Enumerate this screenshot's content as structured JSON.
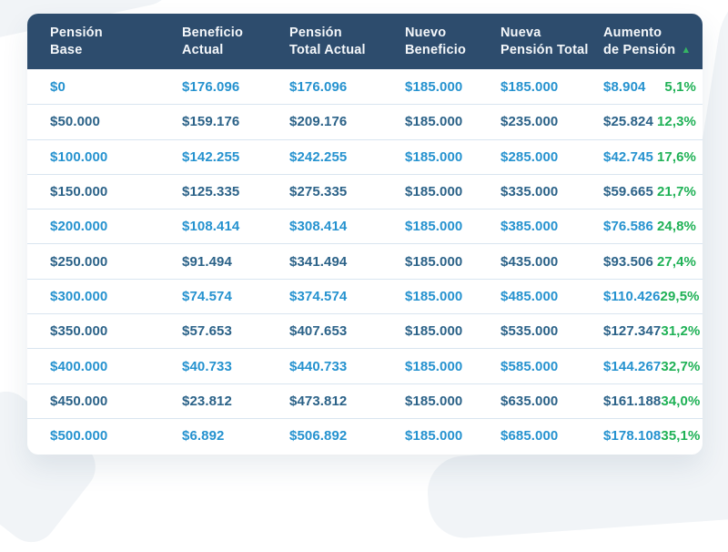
{
  "chart_data": {
    "type": "table",
    "columns": [
      "Pensión Base",
      "Beneficio Actual",
      "Pensión Total Actual",
      "Nuevo Beneficio",
      "Nueva Pensión Total",
      "Aumento de Pensión",
      "Aumento de Pensión %"
    ],
    "rows": [
      [
        "$0",
        "$176.096",
        "$176.096",
        "$185.000",
        "$185.000",
        "$8.904",
        "5,1%"
      ],
      [
        "$50.000",
        "$159.176",
        "$209.176",
        "$185.000",
        "$235.000",
        "$25.824",
        "12,3%"
      ],
      [
        "$100.000",
        "$142.255",
        "$242.255",
        "$185.000",
        "$285.000",
        "$42.745",
        "17,6%"
      ],
      [
        "$150.000",
        "$125.335",
        "$275.335",
        "$185.000",
        "$335.000",
        "$59.665",
        "21,7%"
      ],
      [
        "$200.000",
        "$108.414",
        "$308.414",
        "$185.000",
        "$385.000",
        "$76.586",
        "24,8%"
      ],
      [
        "$250.000",
        "$91.494",
        "$341.494",
        "$185.000",
        "$435.000",
        "$93.506",
        "27,4%"
      ],
      [
        "$300.000",
        "$74.574",
        "$374.574",
        "$185.000",
        "$485.000",
        "$110.426",
        "29,5%"
      ],
      [
        "$350.000",
        "$57.653",
        "$407.653",
        "$185.000",
        "$535.000",
        "$127.347",
        "31,2%"
      ],
      [
        "$400.000",
        "$40.733",
        "$440.733",
        "$185.000",
        "$585.000",
        "$144.267",
        "32,7%"
      ],
      [
        "$450.000",
        "$23.812",
        "$473.812",
        "$185.000",
        "$635.000",
        "$161.188",
        "34,0%"
      ],
      [
        "$500.000",
        "$6.892",
        "$506.892",
        "$185.000",
        "$685.000",
        "$178.108",
        "35,1%"
      ]
    ],
    "sort": {
      "column": "Aumento de Pensión",
      "direction": "ascending"
    }
  },
  "table": {
    "columns": [
      {
        "line1": "Pensión",
        "line2": "Base"
      },
      {
        "line1": "Beneficio",
        "line2": "Actual"
      },
      {
        "line1": "Pensión",
        "line2": "Total Actual"
      },
      {
        "line1": "Nuevo",
        "line2": "Beneficio"
      },
      {
        "line1": "Nueva",
        "line2": "Pensión Total"
      },
      {
        "line1": "Aumento",
        "line2": "de Pensión",
        "sort_icon": "▲"
      }
    ],
    "rows": [
      {
        "pension_base": "$0",
        "beneficio_actual": "$176.096",
        "pension_total_actual": "$176.096",
        "nuevo_beneficio": "$185.000",
        "nueva_pension_total": "$185.000",
        "aumento": "$8.904",
        "aumento_pct": "5,1%",
        "tone": "bright"
      },
      {
        "pension_base": "$50.000",
        "beneficio_actual": "$159.176",
        "pension_total_actual": "$209.176",
        "nuevo_beneficio": "$185.000",
        "nueva_pension_total": "$235.000",
        "aumento": "$25.824",
        "aumento_pct": "12,3%",
        "tone": "dark"
      },
      {
        "pension_base": "$100.000",
        "beneficio_actual": "$142.255",
        "pension_total_actual": "$242.255",
        "nuevo_beneficio": "$185.000",
        "nueva_pension_total": "$285.000",
        "aumento": "$42.745",
        "aumento_pct": "17,6%",
        "tone": "bright"
      },
      {
        "pension_base": "$150.000",
        "beneficio_actual": "$125.335",
        "pension_total_actual": "$275.335",
        "nuevo_beneficio": "$185.000",
        "nueva_pension_total": "$335.000",
        "aumento": "$59.665",
        "aumento_pct": "21,7%",
        "tone": "dark"
      },
      {
        "pension_base": "$200.000",
        "beneficio_actual": "$108.414",
        "pension_total_actual": "$308.414",
        "nuevo_beneficio": "$185.000",
        "nueva_pension_total": "$385.000",
        "aumento": "$76.586",
        "aumento_pct": "24,8%",
        "tone": "bright"
      },
      {
        "pension_base": "$250.000",
        "beneficio_actual": "$91.494",
        "pension_total_actual": "$341.494",
        "nuevo_beneficio": "$185.000",
        "nueva_pension_total": "$435.000",
        "aumento": "$93.506",
        "aumento_pct": "27,4%",
        "tone": "dark"
      },
      {
        "pension_base": "$300.000",
        "beneficio_actual": "$74.574",
        "pension_total_actual": "$374.574",
        "nuevo_beneficio": "$185.000",
        "nueva_pension_total": "$485.000",
        "aumento": "$110.426",
        "aumento_pct": "29,5%",
        "tone": "bright"
      },
      {
        "pension_base": "$350.000",
        "beneficio_actual": "$57.653",
        "pension_total_actual": "$407.653",
        "nuevo_beneficio": "$185.000",
        "nueva_pension_total": "$535.000",
        "aumento": "$127.347",
        "aumento_pct": "31,2%",
        "tone": "dark"
      },
      {
        "pension_base": "$400.000",
        "beneficio_actual": "$40.733",
        "pension_total_actual": "$440.733",
        "nuevo_beneficio": "$185.000",
        "nueva_pension_total": "$585.000",
        "aumento": "$144.267",
        "aumento_pct": "32,7%",
        "tone": "bright"
      },
      {
        "pension_base": "$450.000",
        "beneficio_actual": "$23.812",
        "pension_total_actual": "$473.812",
        "nuevo_beneficio": "$185.000",
        "nueva_pension_total": "$635.000",
        "aumento": "$161.188",
        "aumento_pct": "34,0%",
        "tone": "dark"
      },
      {
        "pension_base": "$500.000",
        "beneficio_actual": "$6.892",
        "pension_total_actual": "$506.892",
        "nuevo_beneficio": "$185.000",
        "nueva_pension_total": "$685.000",
        "aumento": "$178.108",
        "aumento_pct": "35,1%",
        "tone": "bright"
      }
    ],
    "colors": {
      "header_bg": "#2d4c6d",
      "header_text": "#f4f7fa",
      "row_text_bright": "#2592cf",
      "row_text_dark": "#2b6288",
      "percent_green": "#1fb156",
      "sort_arrow_green": "#35b464",
      "separator": "#d9e5f0"
    }
  }
}
